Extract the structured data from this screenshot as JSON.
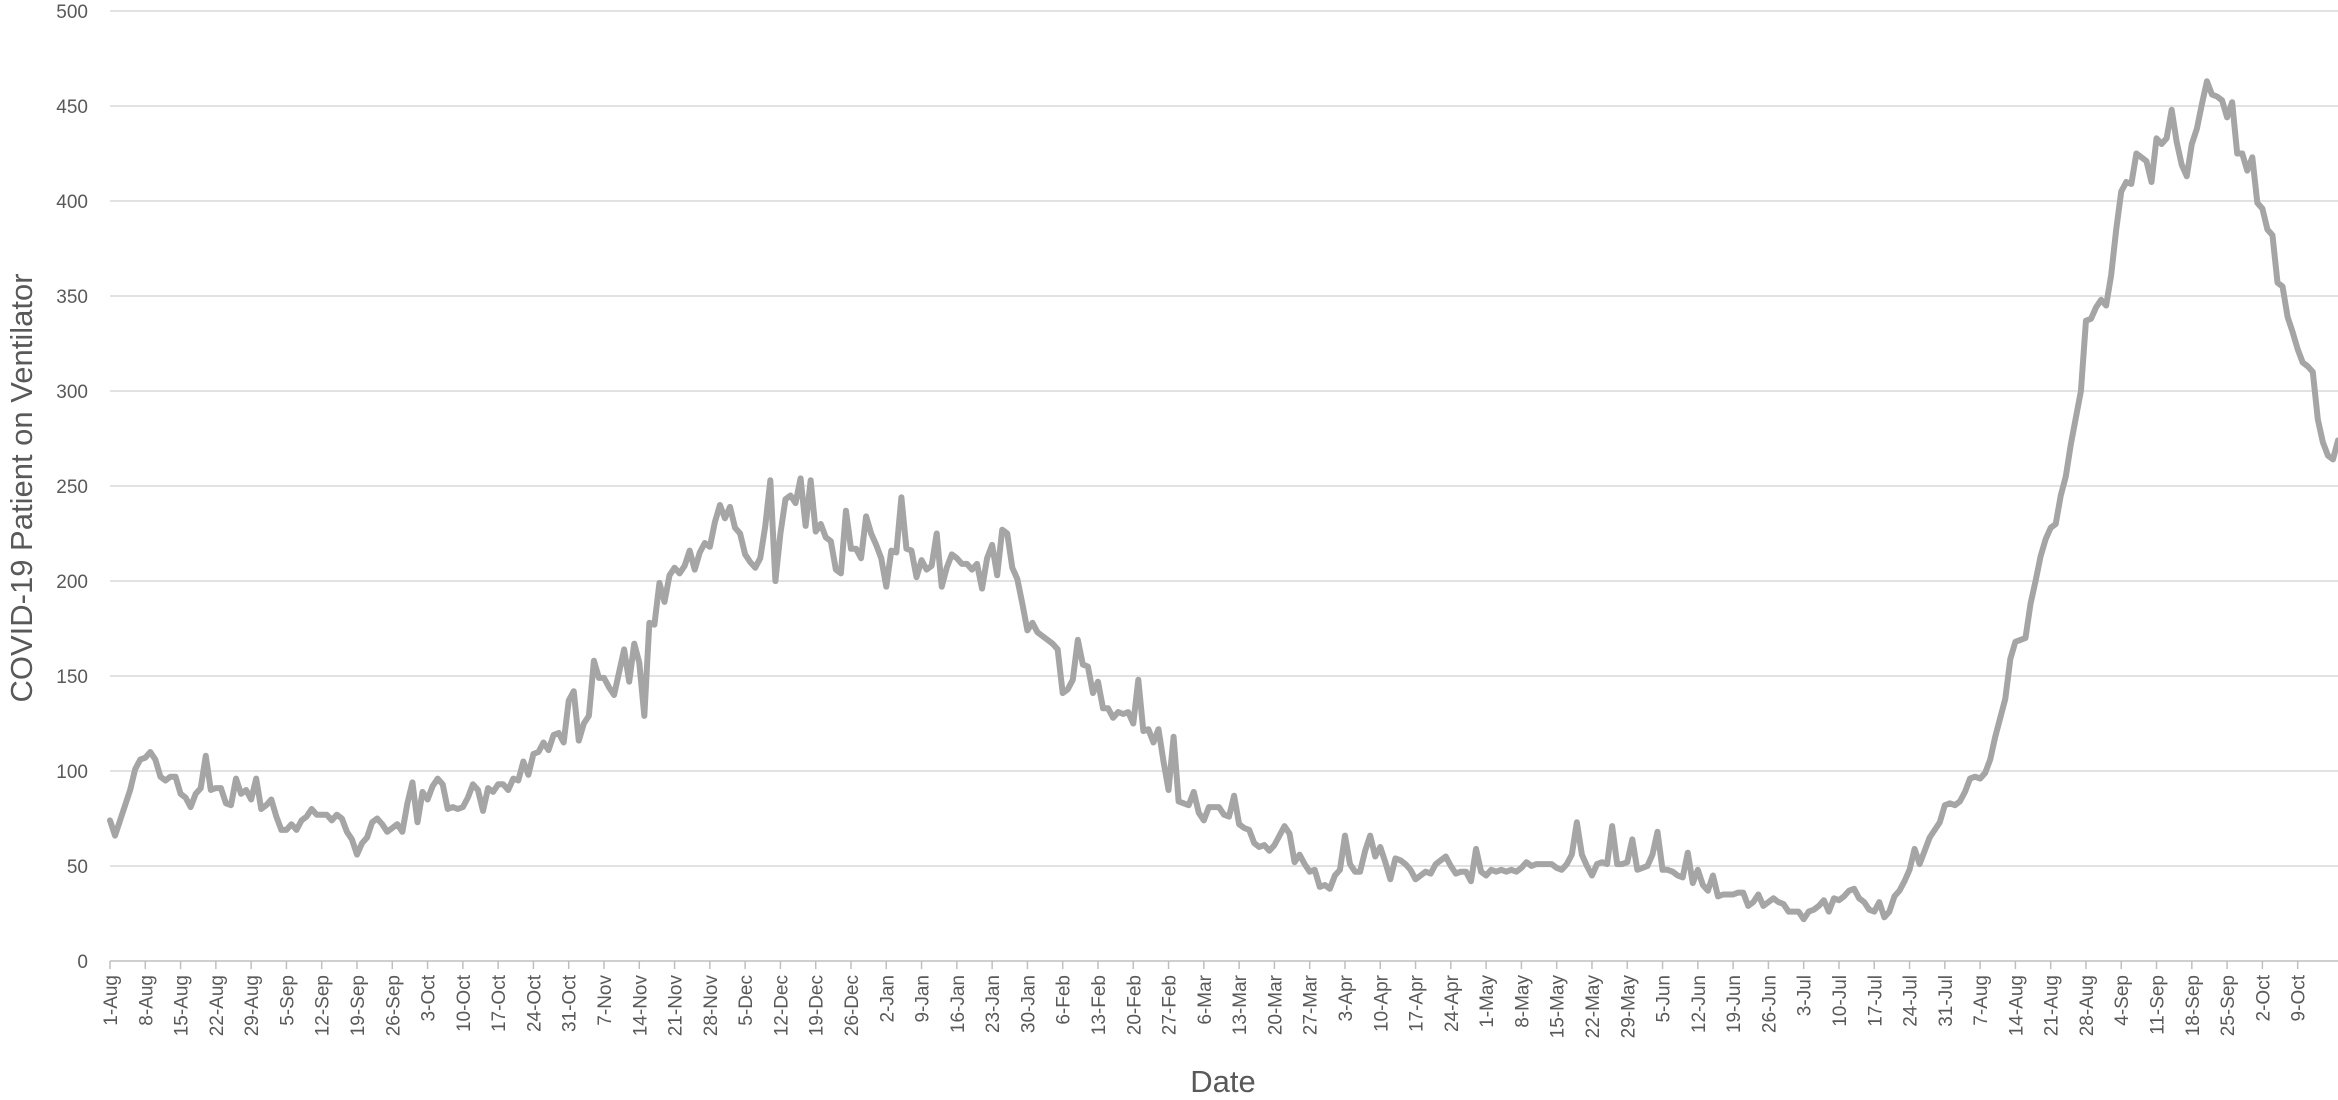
{
  "chart_data": {
    "type": "line",
    "xlabel": "Date",
    "ylabel": "COVID-19 Patient on Ventilator",
    "ylim": [
      0,
      500
    ],
    "yticks": [
      0,
      50,
      100,
      150,
      200,
      250,
      300,
      350,
      400,
      450,
      500
    ],
    "grid": true,
    "legend": "none",
    "colors": {
      "series": "#a5a5a5",
      "grid": "#d9d9d9",
      "text": "#595959"
    },
    "x_tick_labels": [
      "1-Aug",
      "8-Aug",
      "15-Aug",
      "22-Aug",
      "29-Aug",
      "5-Sep",
      "12-Sep",
      "19-Sep",
      "26-Sep",
      "3-Oct",
      "10-Oct",
      "17-Oct",
      "24-Oct",
      "31-Oct",
      "7-Nov",
      "14-Nov",
      "21-Nov",
      "28-Nov",
      "5-Dec",
      "12-Dec",
      "19-Dec",
      "26-Dec",
      "2-Jan",
      "9-Jan",
      "16-Jan",
      "23-Jan",
      "30-Jan",
      "6-Feb",
      "13-Feb",
      "20-Feb",
      "27-Feb",
      "6-Mar",
      "13-Mar",
      "20-Mar",
      "27-Mar",
      "3-Apr",
      "10-Apr",
      "17-Apr",
      "24-Apr",
      "1-May",
      "8-May",
      "15-May",
      "22-May",
      "29-May",
      "5-Jun",
      "12-Jun",
      "19-Jun",
      "26-Jun",
      "3-Jul",
      "10-Jul",
      "17-Jul",
      "24-Jul",
      "31-Jul",
      "7-Aug",
      "14-Aug",
      "21-Aug",
      "28-Aug",
      "4-Sep",
      "11-Sep",
      "18-Sep",
      "25-Sep",
      "2-Oct",
      "9-Oct"
    ],
    "series": [
      {
        "values": [
          74,
          66,
          74,
          82,
          90,
          101,
          106,
          107,
          110,
          106,
          97,
          95,
          97,
          97,
          88,
          86,
          81,
          88,
          91,
          108,
          90,
          91,
          91,
          83,
          82,
          96,
          88,
          90,
          85,
          96,
          80,
          82,
          85,
          76,
          69,
          69,
          72,
          69,
          74,
          76,
          80,
          77,
          77,
          77,
          74,
          77,
          75,
          68,
          64,
          56,
          62,
          65,
          73,
          75,
          72,
          68,
          70,
          72,
          68,
          83,
          94,
          73,
          89,
          85,
          92,
          96,
          93,
          80,
          81,
          80,
          81,
          86,
          93,
          90,
          79,
          91,
          89,
          93,
          93,
          90,
          96,
          95,
          105,
          98,
          109,
          110,
          115,
          111,
          119,
          120,
          115,
          137,
          142,
          116,
          125,
          129,
          158,
          149,
          149,
          144,
          140,
          152,
          164,
          147,
          167,
          157,
          129,
          178,
          177,
          199,
          189,
          203,
          207,
          204,
          208,
          216,
          206,
          215,
          220,
          218,
          231,
          240,
          233,
          239,
          228,
          225,
          214,
          210,
          207,
          212,
          229,
          253,
          200,
          225,
          243,
          245,
          241,
          254,
          229,
          253,
          226,
          230,
          223,
          221,
          206,
          204,
          237,
          217,
          217,
          212,
          234,
          225,
          219,
          212,
          197,
          216,
          215,
          244,
          217,
          216,
          202,
          211,
          206,
          208,
          225,
          197,
          207,
          214,
          212,
          209,
          209,
          206,
          209,
          196,
          212,
          219,
          203,
          227,
          225,
          207,
          201,
          188,
          174,
          178,
          173,
          171,
          169,
          167,
          164,
          141,
          143,
          148,
          169,
          156,
          155,
          141,
          147,
          133,
          133,
          128,
          131,
          130,
          131,
          125,
          148,
          121,
          122,
          115,
          122,
          105,
          90,
          118,
          84,
          83,
          82,
          89,
          78,
          74,
          81,
          81,
          81,
          77,
          76,
          87,
          72,
          70,
          69,
          62,
          60,
          61,
          58,
          61,
          66,
          71,
          67,
          52,
          56,
          51,
          47,
          48,
          39,
          40,
          38,
          45,
          48,
          66,
          51,
          47,
          47,
          58,
          66,
          55,
          60,
          52,
          43,
          54,
          53,
          51,
          48,
          43,
          45,
          47,
          46,
          51,
          53,
          55,
          50,
          46,
          47,
          47,
          42,
          59,
          47,
          45,
          48,
          47,
          48,
          47,
          48,
          47,
          49,
          52,
          50,
          51,
          51,
          51,
          51,
          49,
          48,
          51,
          56,
          73,
          56,
          50,
          45,
          51,
          52,
          51,
          71,
          51,
          51,
          52,
          64,
          48,
          49,
          50,
          56,
          68,
          48,
          48,
          47,
          45,
          44,
          57,
          41,
          48,
          40,
          37,
          45,
          34,
          35,
          35,
          35,
          36,
          36,
          29,
          31,
          35,
          29,
          31,
          33,
          31,
          30,
          26,
          26,
          26,
          22,
          26,
          27,
          29,
          32,
          26,
          33,
          32,
          34,
          37,
          38,
          33,
          31,
          27,
          26,
          31,
          23,
          26,
          34,
          37,
          42,
          48,
          59,
          51,
          58,
          65,
          69,
          73,
          82,
          83,
          82,
          84,
          89,
          96,
          97,
          96,
          99,
          106,
          118,
          128,
          138,
          159,
          168,
          169,
          170,
          188,
          200,
          213,
          222,
          228,
          230,
          245,
          255,
          272,
          286,
          300,
          337,
          338,
          344,
          348,
          345,
          361,
          385,
          405,
          410,
          409,
          425,
          423,
          421,
          410,
          433,
          430,
          433,
          448,
          431,
          419,
          413,
          430,
          438,
          451,
          463,
          456,
          455,
          453,
          444,
          452,
          425,
          425,
          416,
          423,
          399,
          396,
          385,
          382,
          357,
          355,
          339,
          331,
          322,
          315,
          313,
          310,
          285,
          273,
          266,
          264,
          274
        ]
      }
    ]
  }
}
